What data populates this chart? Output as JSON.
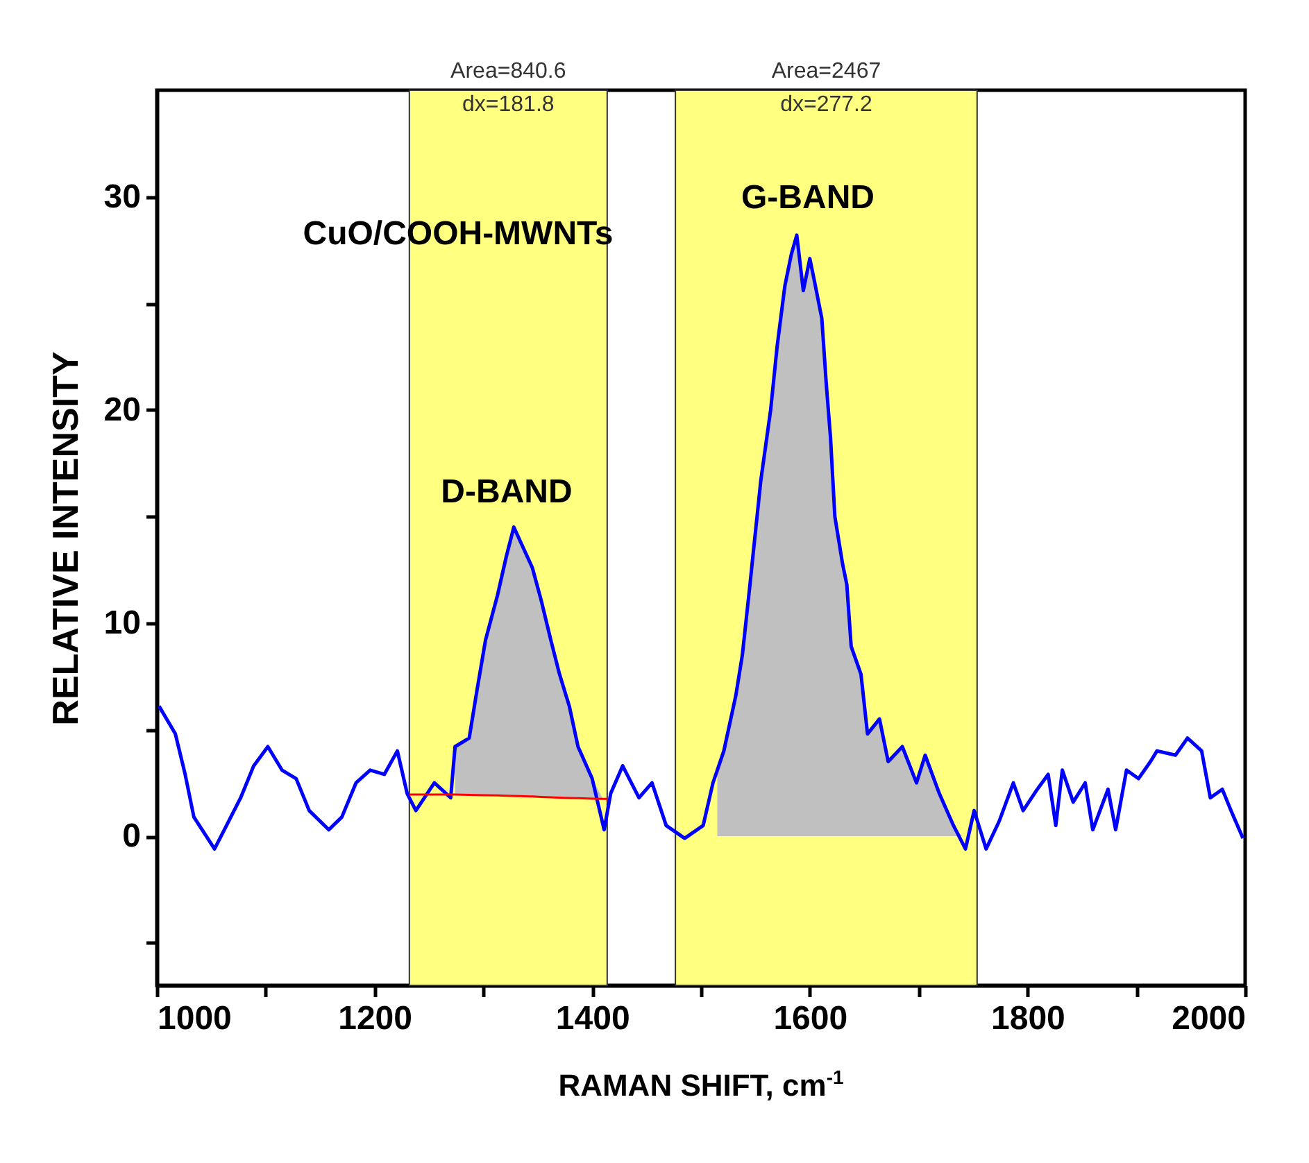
{
  "chart_data": {
    "type": "line",
    "xlabel": "RAMAN SHIFT, cm$^{-1}$",
    "ylabel": "RELATIVE INTENSITY",
    "xlim": [
      1000,
      2000
    ],
    "ylim": [
      -7,
      35
    ],
    "xticks": [
      1000,
      {
        "value": 1100,
        "label": null
      },
      1200,
      {
        "value": 1300,
        "label": null
      },
      1400,
      {
        "value": 1500,
        "label": null
      },
      1600,
      {
        "value": 1700,
        "label": null
      },
      1800,
      {
        "value": 1900,
        "label": null
      },
      2000
    ],
    "yticks": [
      {
        "value": -5,
        "label": null
      },
      0,
      {
        "value": 5,
        "label": null
      },
      10,
      {
        "value": 15,
        "label": null
      },
      20,
      {
        "value": 25,
        "label": null
      },
      30
    ],
    "bands": [
      {
        "axis": "x",
        "from": 1232,
        "to": 1413.8,
        "label": "Area=840.6 dx=181.8",
        "color": "#ffff80"
      },
      {
        "axis": "x",
        "from": 1476.5,
        "to": 1753.7,
        "label": "Area=2467 dx=277.2",
        "color": "#ffff80"
      }
    ],
    "series": [
      {
        "type": "area",
        "color": "#c0c0c0",
        "x": [
          1515,
          1521,
          1532,
          1538,
          1545,
          1547,
          1555,
          1564,
          1570,
          1577,
          1583,
          1588,
          1594,
          1600,
          1604,
          1611,
          1615,
          1619,
          1623,
          1630,
          1634,
          1638,
          1647,
          1653,
          1664,
          1672,
          1685,
          1698,
          1706,
          1719,
          1732,
          1740
        ],
        "values": [
          2.9,
          4.0,
          6.6,
          8.5,
          11.8,
          12.8,
          16.7,
          20.0,
          23.0,
          25.8,
          27.3,
          28.2,
          25.6,
          27.1,
          26.1,
          24.3,
          21.3,
          18.7,
          15.0,
          12.8,
          11.8,
          8.9,
          7.6,
          4.8,
          5.5,
          3.5,
          4.2,
          2.5,
          3.8,
          2.0,
          0.5,
          0
        ]
      },
      {
        "color": "#0000ff",
        "x": [
          1002,
          1017,
          1026,
          1034,
          1053,
          1064,
          1077,
          1089,
          1102,
          1115,
          1128,
          1140,
          1158,
          1170,
          1183,
          1196,
          1209,
          1221,
          1230,
          1238,
          1255,
          1270,
          1274,
          1287,
          1294,
          1302,
          1313,
          1321,
          1328,
          1345,
          1353,
          1362,
          1370,
          1379,
          1387,
          1400,
          1411,
          1417,
          1428,
          1443,
          1455,
          1468,
          1485,
          1502,
          1511,
          1521,
          1532,
          1538,
          1545,
          1547,
          1555,
          1564,
          1570,
          1577,
          1583,
          1588,
          1594,
          1600,
          1604,
          1611,
          1615,
          1619,
          1623,
          1630,
          1634,
          1638,
          1647,
          1653,
          1664,
          1672,
          1685,
          1698,
          1706,
          1719,
          1732,
          1743,
          1751,
          1762,
          1774,
          1787,
          1796,
          1809,
          1819,
          1826,
          1832,
          1842,
          1853,
          1860,
          1874,
          1881,
          1891,
          1902,
          1913,
          1919,
          1936,
          1947,
          1960,
          1968,
          1979,
          1987,
          1998
        ],
        "values": [
          6.1,
          4.8,
          2.9,
          0.9,
          -0.6,
          0.5,
          1.8,
          3.3,
          4.2,
          3.1,
          2.7,
          1.2,
          0.3,
          0.9,
          2.5,
          3.1,
          2.9,
          4.0,
          2.0,
          1.2,
          2.5,
          1.8,
          4.2,
          4.6,
          6.8,
          9.2,
          11.3,
          13.1,
          14.5,
          12.6,
          11.1,
          9.2,
          7.6,
          6.1,
          4.2,
          2.7,
          0.3,
          2.0,
          3.3,
          1.8,
          2.5,
          0.5,
          -0.1,
          0.5,
          2.5,
          4.0,
          6.6,
          8.5,
          11.8,
          12.8,
          16.7,
          20.0,
          23.0,
          25.8,
          27.3,
          28.2,
          25.6,
          27.1,
          26.1,
          24.3,
          21.3,
          18.7,
          15.0,
          12.8,
          11.8,
          8.9,
          7.6,
          4.8,
          5.5,
          3.5,
          4.2,
          2.5,
          3.8,
          2.0,
          0.5,
          -0.6,
          1.2,
          -0.6,
          0.7,
          2.5,
          1.2,
          2.2,
          2.9,
          0.5,
          3.1,
          1.6,
          2.5,
          0.3,
          2.2,
          0.3,
          3.1,
          2.7,
          3.5,
          4.0,
          3.8,
          4.6,
          4.0,
          1.8,
          2.2,
          1.2,
          -0.1
        ]
      },
      {
        "color": "#ff0000",
        "x": [
          1232,
          1274,
          1287,
          1294,
          1302,
          1313,
          1321,
          1328,
          1345,
          1353,
          1362,
          1370,
          1379,
          1387,
          1400,
          1410,
          1413.8
        ],
        "values": [
          1.95,
          1.95,
          1.94,
          1.93,
          1.92,
          1.91,
          1.9,
          1.89,
          1.86,
          1.84,
          1.82,
          1.81,
          1.79,
          1.78,
          1.76,
          1.75,
          1.75
        ],
        "lower": [
          null,
          1.95,
          1.94,
          1.93,
          1.92,
          1.91,
          1.9,
          1.89,
          1.86,
          1.84,
          1.82,
          1.81,
          1.79,
          1.78,
          1.76,
          1.75,
          null
        ],
        "upper": [
          null,
          4.2,
          4.6,
          6.8,
          9.2,
          11.3,
          13.1,
          14.5,
          12.6,
          11.1,
          9.2,
          7.6,
          6.1,
          4.2,
          2.7,
          1.75,
          null
        ]
      }
    ],
    "annotations": [
      "CuO/COOH-MWNTs",
      "D-BAND",
      "G-BAND"
    ]
  }
}
